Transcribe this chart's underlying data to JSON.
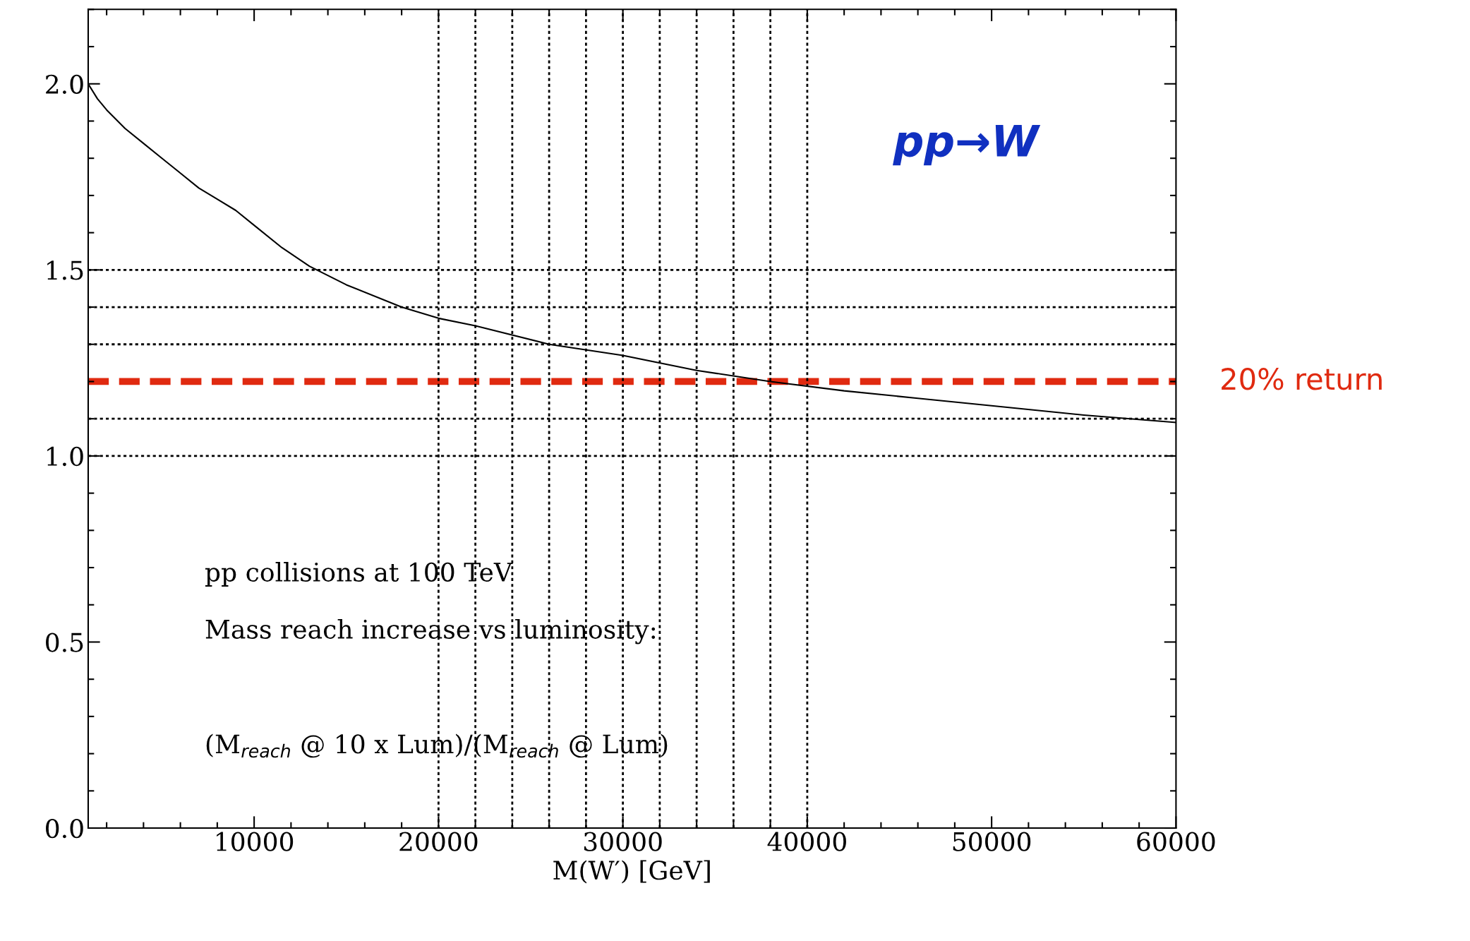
{
  "chart_data": {
    "type": "line",
    "xlabel": "M(W′) [GeV]",
    "x": [
      1000,
      1500,
      2000,
      3000,
      4000,
      5000,
      6000,
      7000,
      8000,
      9000,
      10000,
      11500,
      13000,
      15000,
      18000,
      20000,
      22000,
      26000,
      30000,
      34000,
      38000,
      42000,
      46000,
      50000,
      55000,
      60000
    ],
    "series": [
      {
        "color": "#000000",
        "values": [
          2.0,
          1.96,
          1.93,
          1.88,
          1.84,
          1.8,
          1.76,
          1.72,
          1.69,
          1.66,
          1.62,
          1.56,
          1.51,
          1.46,
          1.4,
          1.37,
          1.35,
          1.3,
          1.27,
          1.23,
          1.2,
          1.175,
          1.155,
          1.135,
          1.11,
          1.09
        ]
      }
    ],
    "line_style": "solid",
    "marker": "none",
    "xlim": [
      1000,
      60000
    ],
    "xticks": [
      10000,
      20000,
      30000,
      40000,
      50000,
      60000
    ],
    "ylim": [
      0,
      2.2
    ],
    "yticks": [
      {
        "value": 0,
        "label": "0.0"
      },
      {
        "value": 0.5,
        "label": "0.5"
      },
      {
        "value": 1.0,
        "label": "1.0"
      },
      {
        "value": 1.5,
        "label": "1.5"
      },
      {
        "value": 2.0,
        "label": "2.0"
      }
    ],
    "grid": false,
    "legend": false,
    "ref_lines": [
      {
        "axis": "y",
        "value": 1.0,
        "color": "#000000",
        "line_style": "dotted"
      },
      {
        "axis": "y",
        "value": 1.1,
        "color": "#000000",
        "line_style": "dotted"
      },
      {
        "axis": "y",
        "value": 1.2,
        "color": "#e02a10",
        "line_style": "dashed",
        "label": "20% return"
      },
      {
        "axis": "y",
        "value": 1.3,
        "color": "#000000",
        "line_style": "dotted"
      },
      {
        "axis": "y",
        "value": 1.4,
        "color": "#000000",
        "line_style": "dotted"
      },
      {
        "axis": "y",
        "value": 1.5,
        "color": "#000000",
        "line_style": "dotted"
      },
      {
        "axis": "x",
        "value": 20000,
        "color": "#000000",
        "line_style": "dotted"
      },
      {
        "axis": "x",
        "value": 22000,
        "color": "#000000",
        "line_style": "dotted"
      },
      {
        "axis": "x",
        "value": 24000,
        "color": "#000000",
        "line_style": "dotted"
      },
      {
        "axis": "x",
        "value": 26000,
        "color": "#000000",
        "line_style": "dotted"
      },
      {
        "axis": "x",
        "value": 28000,
        "color": "#000000",
        "line_style": "dotted"
      },
      {
        "axis": "x",
        "value": 30000,
        "color": "#000000",
        "line_style": "dotted"
      },
      {
        "axis": "x",
        "value": 32000,
        "color": "#000000",
        "line_style": "dotted"
      },
      {
        "axis": "x",
        "value": 34000,
        "color": "#000000",
        "line_style": "dotted"
      },
      {
        "axis": "x",
        "value": 36000,
        "color": "#000000",
        "line_style": "dotted"
      },
      {
        "axis": "x",
        "value": 38000,
        "color": "#000000",
        "line_style": "dotted"
      },
      {
        "axis": "x",
        "value": 40000,
        "color": "#000000",
        "line_style": "dotted"
      }
    ],
    "annotations": [
      "pp→W",
      "pp collisions at 100 TeV",
      "Mass reach increase vs luminosity:",
      "(M$_{reach}$ @ 10 x Lum)/(M$_{reach}$ @ Lum)"
    ]
  }
}
